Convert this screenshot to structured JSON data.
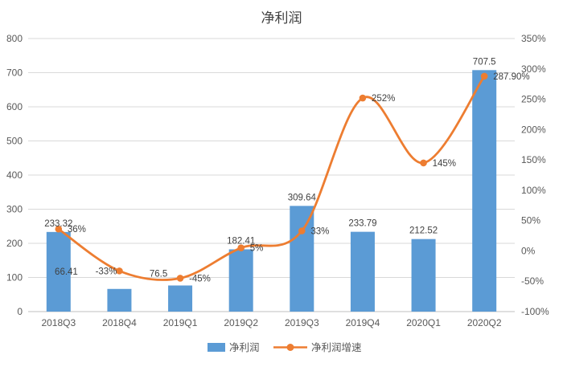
{
  "chart_data": {
    "type": "combo-bar-line",
    "title": "净利润",
    "categories": [
      "2018Q3",
      "2018Q4",
      "2019Q1",
      "2019Q2",
      "2019Q3",
      "2019Q4",
      "2020Q1",
      "2020Q2"
    ],
    "series": [
      {
        "name": "净利润",
        "type": "bar",
        "axis": "left",
        "color": "#5B9BD5",
        "values": [
          233.32,
          66.41,
          76.5,
          182.41,
          309.64,
          233.79,
          212.52,
          707.5
        ],
        "labels": [
          "233.32",
          "66.41",
          "76.5",
          "182.41",
          "309.64",
          "233.79",
          "212.52",
          "707.5"
        ]
      },
      {
        "name": "净利润增速",
        "type": "line",
        "axis": "right",
        "color": "#ED7D31",
        "values": [
          36,
          -33,
          -45,
          5,
          33,
          252,
          145,
          287.9
        ],
        "labels": [
          "36%",
          "-33%",
          "-45%",
          "5%",
          "33%",
          "252%",
          "145%",
          "287.90%"
        ]
      }
    ],
    "left_axis": {
      "min": 0,
      "max": 800,
      "step": 100,
      "tick_labels": [
        "0",
        "100",
        "200",
        "300",
        "400",
        "500",
        "600",
        "700",
        "800"
      ]
    },
    "right_axis": {
      "min": -100,
      "max": 350,
      "step": 50,
      "tick_labels": [
        "-100%",
        "-50%",
        "0%",
        "50%",
        "100%",
        "150%",
        "200%",
        "250%",
        "300%",
        "350%"
      ]
    },
    "grid": "horizontal",
    "legend_position": "bottom",
    "colors": {
      "bar": "#5B9BD5",
      "line": "#ED7D31",
      "grid": "#D9D9D9",
      "axis_line": "#BFBFBF",
      "text": "#595959",
      "label_text": "#404040",
      "title_text": "#404040"
    }
  }
}
